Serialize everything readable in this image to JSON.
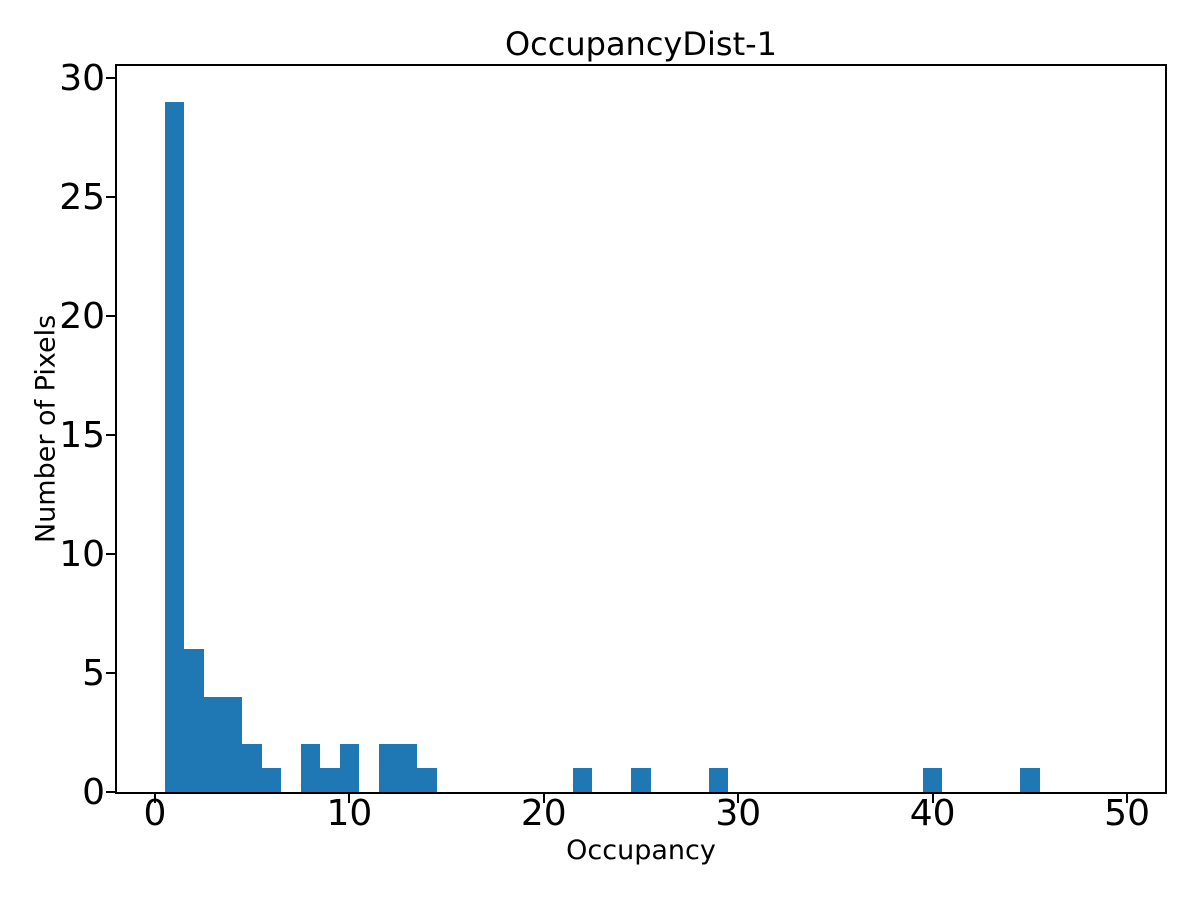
{
  "figure": {
    "background": "#ffffff",
    "text_color": "#000000"
  },
  "chart_data": {
    "type": "bar",
    "subtype": "histogram",
    "title": "OccupancyDist-1",
    "xlabel": "Occupancy",
    "ylabel": "Number of Pixels",
    "bar_color": "#1f77b4",
    "bin_width": 1,
    "bin_centers": [
      1,
      2,
      3,
      4,
      5,
      6,
      8,
      9,
      10,
      12,
      13,
      14,
      22,
      25,
      29,
      40,
      45
    ],
    "counts": [
      29,
      6,
      4,
      4,
      2,
      1,
      2,
      1,
      2,
      2,
      2,
      1,
      1,
      1,
      1,
      1,
      1
    ],
    "xticks": [
      0,
      10,
      20,
      30,
      40,
      50
    ],
    "yticks": [
      0,
      5,
      10,
      15,
      20,
      25,
      30
    ],
    "xlim": [
      -1.95,
      51.95
    ],
    "ylim": [
      0,
      30.5
    ],
    "grid": false,
    "legend": null
  }
}
